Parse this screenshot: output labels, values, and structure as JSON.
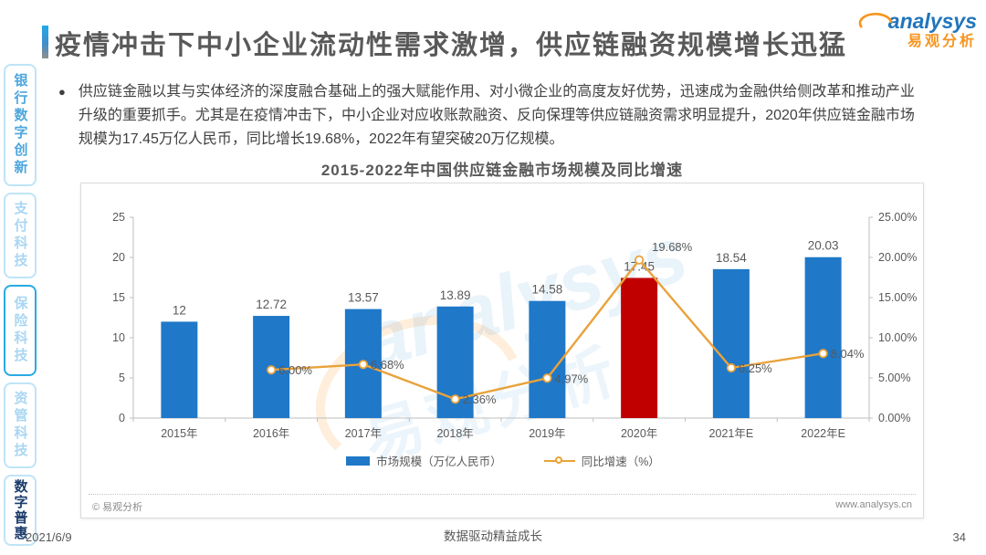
{
  "page": {
    "title": "疫情冲击下中小企业流动性需求激增，供应链融资规模增长迅猛",
    "bullet_marker": "●",
    "bullet_text": "供应链金融以其与实体经济的深度融合基础上的强大赋能作用、对小微企业的高度友好优势，迅速成为金融供给侧改革和推动产业升级的重要抓手。尤其是在疫情冲击下，中小企业对应收账款融资、反向保理等供应链融资需求明显提升，2020年供应链金融市场规模为17.45万亿人民币，同比增长19.68%，2022年有望突破20万亿规模。",
    "footer": {
      "date": "2021/6/9",
      "slogan": "数据驱动精益成长",
      "page_number": "34"
    }
  },
  "logo": {
    "brand": "analysys",
    "brand_cn": "易观分析"
  },
  "sidebar": {
    "items": [
      {
        "label": "银行数字创新",
        "state": "normal"
      },
      {
        "label": "支付科技",
        "state": "normal"
      },
      {
        "label": "保险科技",
        "state": "outlined"
      },
      {
        "label": "资管科技",
        "state": "normal"
      },
      {
        "label": "数字普惠",
        "state": "active"
      }
    ]
  },
  "chart_footer": {
    "copyright": "© 易观分析",
    "website": "www.analysys.cn"
  },
  "chart_data": {
    "type": "bar+line",
    "title": "2015-2022年中国供应链金融市场规模及同比增速",
    "categories": [
      "2015年",
      "2016年",
      "2017年",
      "2018年",
      "2019年",
      "2020年",
      "2021年E",
      "2022年E"
    ],
    "series": [
      {
        "name": "市场规模（万亿人民币）",
        "type": "bar",
        "axis": "left",
        "values": [
          12,
          12.72,
          13.57,
          13.89,
          14.58,
          17.45,
          18.54,
          20.03
        ],
        "labels": [
          "12",
          "12.72",
          "13.57",
          "13.89",
          "14.58",
          "17.45",
          "18.54",
          "20.03"
        ]
      },
      {
        "name": "同比增速（%）",
        "type": "line",
        "axis": "right",
        "values": [
          null,
          6.0,
          6.68,
          2.36,
          4.97,
          19.68,
          6.25,
          8.04
        ],
        "labels": [
          "",
          "6.00%",
          "6.68%",
          "2.36%",
          "4.97%",
          "19.68%",
          "6.25%",
          "8.04%"
        ]
      }
    ],
    "left_axis": {
      "min": 0,
      "max": 25,
      "ticks": [
        0,
        5,
        10,
        15,
        20,
        25
      ]
    },
    "right_axis": {
      "min": 0,
      "max": 25,
      "tick_labels": [
        "0.00%",
        "5.00%",
        "10.00%",
        "15.00%",
        "20.00%",
        "25.00%"
      ]
    },
    "highlight_index": 5,
    "legend_position": "bottom",
    "grid": false,
    "colors": {
      "bar": "#1f78c8",
      "highlight_bar": "#c00000",
      "line": "#e9a23b"
    }
  }
}
